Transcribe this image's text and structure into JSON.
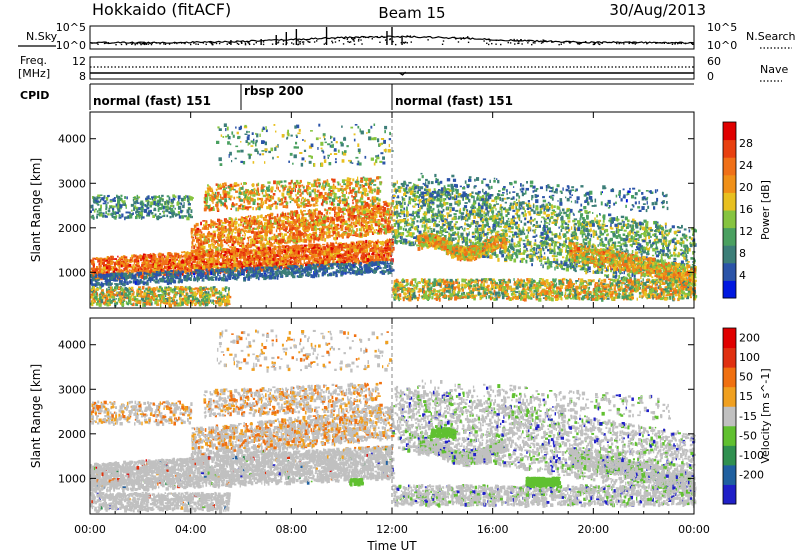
{
  "header": {
    "station": "Hokkaido (fitACF)",
    "beam": "Beam 15",
    "date": "30/Aug/2013"
  },
  "top_panels": {
    "nsky_label": "N.Sky",
    "nsearch_label": "N.Search",
    "freq_label_1": "Freq.",
    "freq_label_2": "[MHz]",
    "nave_label": "Nave",
    "cpid_label": "CPID",
    "nsky_ticks": [
      "10^5",
      "10^0"
    ],
    "nsearch_ticks": [
      "10^5",
      "10^0"
    ],
    "freq_ticks": [
      "12",
      "8"
    ],
    "nave_ticks": [
      "60",
      "0"
    ]
  },
  "cpid_segments": [
    {
      "label": "normal (fast) 151",
      "start_hour": 0
    },
    {
      "label": "rbsp 200",
      "start_hour": 6
    },
    {
      "label": "normal (fast) 151",
      "start_hour": 12
    }
  ],
  "x_axis": {
    "label": "Time UT",
    "ticks": [
      "00:00",
      "04:00",
      "08:00",
      "12:00",
      "16:00",
      "20:00",
      "00:00"
    ]
  },
  "chart_data": [
    {
      "type": "heatmap",
      "ylabel": "Slant Range [km]",
      "yticks": [
        "1000",
        "2000",
        "3000",
        "4000"
      ],
      "ylim": [
        200,
        4600
      ],
      "xlim_hours": [
        0,
        24
      ],
      "colorbar_label": "Power [dB]",
      "colorbar_ticks": [
        "4",
        "8",
        "12",
        "16",
        "20",
        "24",
        "28"
      ],
      "colors": [
        "#0018e0",
        "#2b54a8",
        "#3c7e78",
        "#4aa060",
        "#86c440",
        "#e8c020",
        "#f09018",
        "#f07018",
        "#e84010",
        "#e00000"
      ]
    },
    {
      "type": "heatmap",
      "ylabel": "Slant Range [km]",
      "yticks": [
        "1000",
        "2000",
        "3000",
        "4000"
      ],
      "ylim": [
        200,
        4600
      ],
      "xlim_hours": [
        0,
        24
      ],
      "colorbar_label": "Velocity [m s^-1]",
      "colorbar_ticks": [
        "200",
        "100",
        "50",
        "15",
        "-15",
        "-50",
        "-100",
        "-200"
      ],
      "colors": [
        "#2020c8",
        "#2060a0",
        "#309050",
        "#60c030",
        "#c0c0c0",
        "#f0a020",
        "#f07010",
        "#e03010",
        "#e00000"
      ]
    }
  ]
}
